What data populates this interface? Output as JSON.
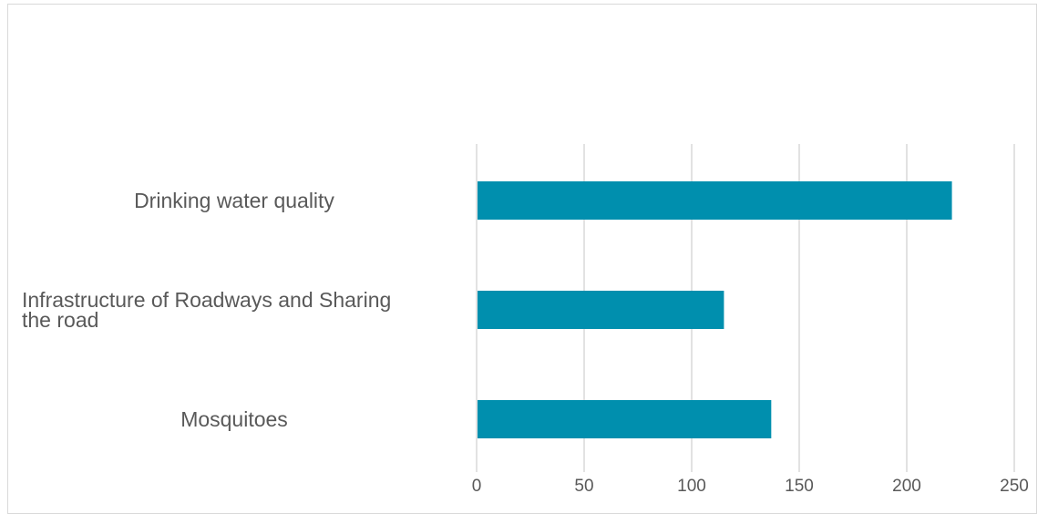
{
  "chart_data": {
    "type": "bar",
    "orientation": "horizontal",
    "categories": [
      "Drinking water quality",
      "Infrastructure of Roadways and Sharing the road",
      "Mosquitoes"
    ],
    "category_lines": [
      [
        "Drinking water quality"
      ],
      [
        "Infrastructure of Roadways and Sharing",
        "the road"
      ],
      [
        "Mosquitoes"
      ]
    ],
    "values": [
      221,
      115,
      137
    ],
    "xlim": [
      0,
      250
    ],
    "xticks": [
      0,
      50,
      100,
      150,
      200,
      250
    ],
    "grid": true,
    "legend": "none",
    "bar_color": "#008fae",
    "grid_color": "#d9d9d9",
    "text_color": "#595959"
  }
}
